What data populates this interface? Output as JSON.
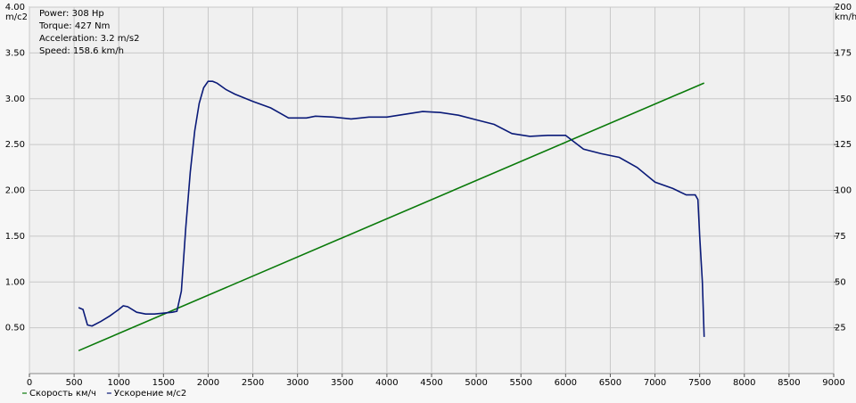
{
  "chart_data": {
    "type": "line",
    "annotations": [
      "Power: 308 Hp",
      "Torque: 427 Nm",
      "Acceleration: 3.2 m/s2",
      "Speed: 158.6 km/h"
    ],
    "ylabel": "m/c2",
    "y2label": "km/h",
    "xlim": [
      0,
      9000
    ],
    "xticks": [
      0,
      500,
      1000,
      1500,
      2000,
      2500,
      3000,
      3500,
      4000,
      4500,
      5000,
      5500,
      6000,
      6500,
      7000,
      7500,
      8000,
      8500,
      9000
    ],
    "ylim": [
      0,
      4
    ],
    "yticks": [
      {
        "value": 0.5,
        "label": "0.50"
      },
      {
        "value": 1,
        "label": "1.00"
      },
      {
        "value": 1.5,
        "label": "1.50"
      },
      {
        "value": 2,
        "label": "2.00"
      },
      {
        "value": 2.5,
        "label": "2.50"
      },
      {
        "value": 3,
        "label": "3.00"
      },
      {
        "value": 3.5,
        "label": "3.50"
      },
      {
        "value": 4,
        "label": "4.00"
      }
    ],
    "y2lim": [
      0,
      200
    ],
    "y2ticks": [
      25,
      50,
      75,
      100,
      125,
      150,
      175,
      200
    ],
    "grid": true,
    "series": [
      {
        "name": "Скорость км/ч",
        "color": "#0a7a0a",
        "axis": "y2",
        "x": [
          550,
          7550
        ],
        "values": [
          12.5,
          158.6
        ]
      },
      {
        "name": "Ускорение м/с2",
        "color": "#0a1a78",
        "x": [
          550,
          600,
          650,
          700,
          800,
          900,
          1000,
          1050,
          1100,
          1200,
          1300,
          1400,
          1500,
          1600,
          1650,
          1700,
          1750,
          1800,
          1850,
          1900,
          1950,
          2000,
          2050,
          2100,
          2200,
          2300,
          2500,
          2700,
          2900,
          3100,
          3200,
          3400,
          3600,
          3800,
          4000,
          4200,
          4400,
          4600,
          4800,
          5000,
          5200,
          5400,
          5600,
          5800,
          6000,
          6200,
          6400,
          6600,
          6800,
          7000,
          7200,
          7350,
          7450,
          7480,
          7500,
          7530,
          7550
        ],
        "values": [
          0.72,
          0.7,
          0.53,
          0.52,
          0.57,
          0.63,
          0.7,
          0.74,
          0.73,
          0.67,
          0.65,
          0.65,
          0.66,
          0.67,
          0.68,
          0.9,
          1.6,
          2.2,
          2.65,
          2.95,
          3.12,
          3.19,
          3.19,
          3.17,
          3.1,
          3.05,
          2.97,
          2.9,
          2.79,
          2.79,
          2.81,
          2.8,
          2.78,
          2.8,
          2.8,
          2.83,
          2.86,
          2.85,
          2.82,
          2.77,
          2.72,
          2.62,
          2.59,
          2.6,
          2.6,
          2.45,
          2.4,
          2.36,
          2.25,
          2.09,
          2.02,
          1.95,
          1.95,
          1.9,
          1.5,
          1.0,
          0.4
        ]
      }
    ]
  }
}
